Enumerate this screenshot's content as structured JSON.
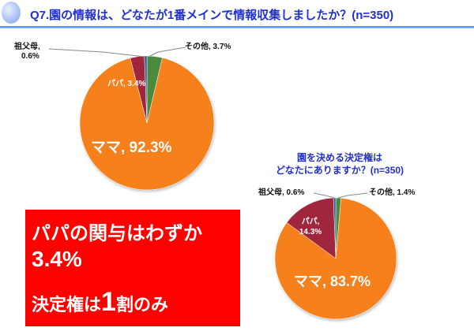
{
  "header": {
    "title": "Q7.園の情報は、どなたが1番メインで情報収集しましたか？(n=350)"
  },
  "colors": {
    "mama": "#f5801e",
    "papa": "#a0283c",
    "grandparents": "#2e5a9a",
    "other": "#4a8a3c",
    "accent_blue": "#1f2fd0",
    "callout_red": "#ff0000"
  },
  "chart_data": [
    {
      "type": "pie",
      "title": "Q7.園の情報は、どなたが1番メインで情報収集しましたか？(n=350)",
      "categories": [
        "その他",
        "ママ",
        "パパ",
        "祖父母"
      ],
      "values": [
        3.7,
        92.3,
        3.4,
        0.6
      ],
      "labels": [
        "その他, 3.7%",
        "ママ, 92.3%",
        "パパ, 3.4%",
        "祖父母, 0.6%"
      ],
      "unit": "%"
    },
    {
      "type": "pie",
      "title": "園を決める決定権はどなたにありますか？(n=350)",
      "categories": [
        "その他",
        "ママ",
        "パパ",
        "祖父母"
      ],
      "values": [
        1.4,
        83.7,
        14.3,
        0.6
      ],
      "labels": [
        "その他, 1.4%",
        "ママ, 83.7%",
        "パパ, 14.3%",
        "祖父母, 0.6%"
      ],
      "unit": "%"
    }
  ],
  "chart1": {
    "label_grandparents_line1": "祖父母,",
    "label_grandparents_line2": "0.6%",
    "label_other": "その他, 3.7%",
    "label_papa": "パパ, 3.4%",
    "label_mama": "ママ, 92.3%"
  },
  "chart2": {
    "title_line1": "園を決める決定権は",
    "title_line2": "どなたにありますか？(n=350)",
    "label_grandparents": "祖父母, 0.6%",
    "label_other": "その他, 1.4%",
    "label_papa_line1": "パパ,",
    "label_papa_line2": "14.3%",
    "label_mama": "ママ, 83.7%"
  },
  "callout": {
    "line1": "パパの関与はわずか",
    "line2": "3.4%",
    "line3_prefix": "決定権は",
    "line3_big": "1",
    "line3_suffix": "割のみ"
  }
}
